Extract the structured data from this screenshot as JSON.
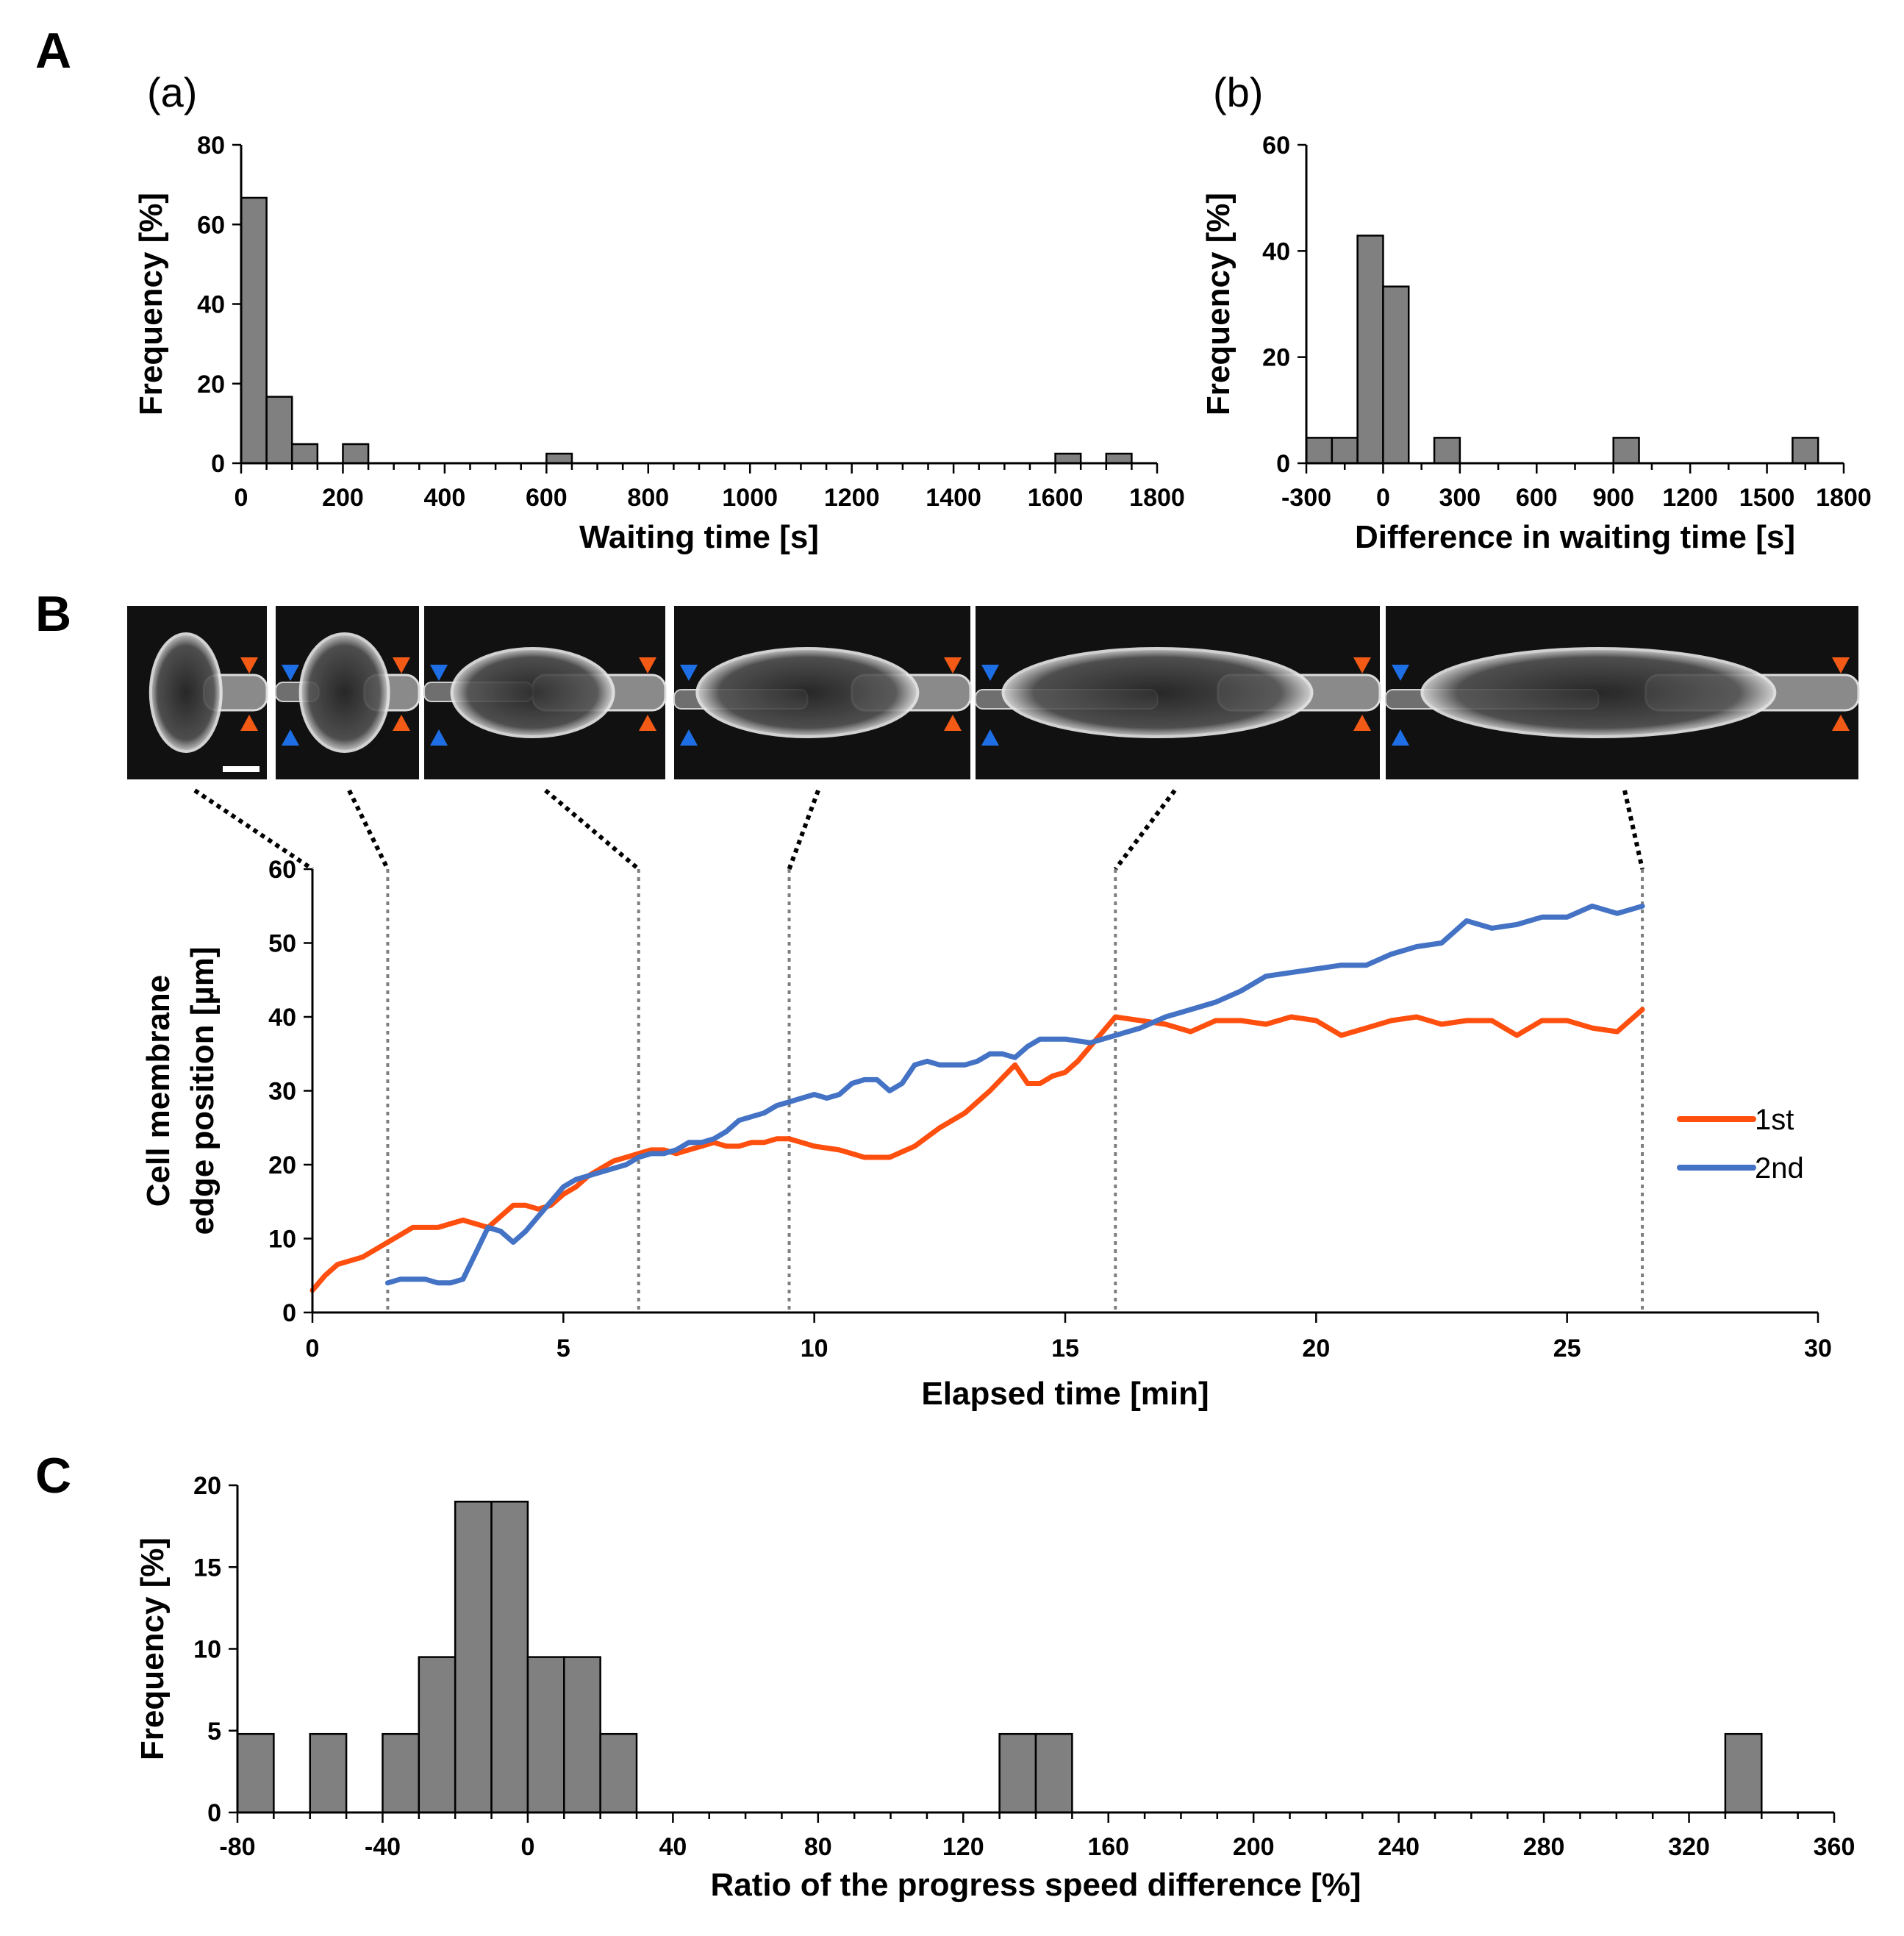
{
  "panels": {
    "A": "A",
    "A_a": "(a)",
    "A_b": "(b)",
    "B": "B",
    "C": "C"
  },
  "micrograph": {
    "frame_count": 6,
    "description_colors": {
      "orange_marker": "#F25A16",
      "blue_marker": "#1E6FE6",
      "cell_bg": "#111111"
    }
  },
  "colors": {
    "bar": "#808080",
    "series_1st": "#FF4F0F",
    "series_2nd": "#4472C4",
    "guide": "#7f7f7f"
  },
  "chart_data": [
    {
      "id": "A_a",
      "type": "bar",
      "title": "(a)",
      "xlabel": "Waiting time [s]",
      "ylabel": "Frequency [%]",
      "xlim": [
        0,
        1800
      ],
      "ylim": [
        0,
        80
      ],
      "xticks": [
        0,
        200,
        400,
        600,
        800,
        1000,
        1200,
        1400,
        1600,
        1800
      ],
      "yticks": [
        0,
        20,
        40,
        60,
        80
      ],
      "bin_width": 50,
      "bin_starts": [
        0,
        50,
        100,
        200,
        600,
        1600,
        1700
      ],
      "values": [
        66.7,
        16.7,
        4.8,
        4.8,
        2.4,
        2.4,
        2.4
      ]
    },
    {
      "id": "A_b",
      "type": "bar",
      "title": "(b)",
      "xlabel": "Difference in waiting time [s]",
      "ylabel": "Frequency [%]",
      "xlim": [
        -300,
        1800
      ],
      "ylim": [
        0,
        60
      ],
      "xticks": [
        -300,
        0,
        300,
        600,
        900,
        1200,
        1500,
        1800
      ],
      "yticks": [
        0,
        20,
        40,
        60
      ],
      "bin_width": 100,
      "bin_starts": [
        -300,
        -200,
        -100,
        0,
        200,
        900,
        1600
      ],
      "values": [
        4.8,
        4.8,
        42.9,
        33.3,
        4.8,
        4.8,
        4.8
      ]
    },
    {
      "id": "B",
      "type": "line",
      "xlabel": "Elapsed time [min]",
      "ylabel_lines": [
        "Cell membrane",
        "edge position [µm]"
      ],
      "xlim": [
        0,
        30
      ],
      "ylim": [
        0,
        60
      ],
      "xticks": [
        0,
        5,
        10,
        15,
        20,
        25,
        30
      ],
      "yticks": [
        0,
        10,
        20,
        30,
        40,
        50,
        60
      ],
      "guide_times": [
        1.5,
        6.5,
        9.5,
        16,
        26.5
      ],
      "legend": [
        "1st",
        "2nd"
      ],
      "legend_position": "right",
      "series": [
        {
          "name": "1st",
          "color": "#FF4F0F",
          "x": [
            0,
            0.25,
            0.5,
            0.75,
            1,
            1.25,
            1.5,
            1.75,
            2,
            2.25,
            2.5,
            2.75,
            3,
            3.25,
            3.5,
            3.75,
            4,
            4.25,
            4.5,
            4.75,
            5,
            5.25,
            5.5,
            5.75,
            6,
            6.25,
            6.5,
            6.75,
            7,
            7.25,
            7.5,
            7.75,
            8,
            8.25,
            8.5,
            8.75,
            9,
            9.25,
            9.5,
            9.75,
            10,
            10.5,
            11,
            11.5,
            12,
            12.5,
            13,
            13.5,
            14,
            14.25,
            14.5,
            14.75,
            15,
            15.25,
            15.5,
            15.75,
            16,
            16.5,
            17,
            17.5,
            18,
            18.5,
            19,
            19.5,
            20,
            20.5,
            21,
            21.5,
            22,
            22.5,
            23,
            23.5,
            24,
            24.5,
            25,
            25.5,
            26,
            26.5
          ],
          "y": [
            3,
            5,
            6.5,
            7,
            7.5,
            8.5,
            9.5,
            10.5,
            11.5,
            11.5,
            11.5,
            12,
            12.5,
            12,
            11.5,
            13,
            14.5,
            14.5,
            14,
            14.5,
            16,
            17,
            18.5,
            19.5,
            20.5,
            21,
            21.5,
            22,
            22,
            21.5,
            22,
            22.5,
            23,
            22.5,
            22.5,
            23,
            23,
            23.5,
            23.5,
            23,
            22.5,
            22,
            21,
            21,
            22.5,
            25,
            27,
            30,
            33.5,
            31,
            31,
            32,
            32.5,
            34,
            36,
            38,
            40,
            39.5,
            39,
            38,
            39.5,
            39.5,
            39,
            40,
            39.5,
            37.5,
            38.5,
            39.5,
            40,
            39,
            39.5,
            39.5,
            37.5,
            39.5,
            39.5,
            38.5,
            38,
            41
          ]
        },
        {
          "name": "2nd",
          "color": "#4472C4",
          "x": [
            1.5,
            1.75,
            2,
            2.25,
            2.5,
            2.75,
            3,
            3.25,
            3.5,
            3.75,
            4,
            4.25,
            4.5,
            4.75,
            5,
            5.25,
            5.5,
            5.75,
            6,
            6.25,
            6.5,
            6.75,
            7,
            7.25,
            7.5,
            7.75,
            8,
            8.25,
            8.5,
            8.75,
            9,
            9.25,
            9.5,
            9.75,
            10,
            10.25,
            10.5,
            10.75,
            11,
            11.25,
            11.5,
            11.75,
            12,
            12.25,
            12.5,
            12.75,
            13,
            13.25,
            13.5,
            13.75,
            14,
            14.25,
            14.5,
            14.75,
            15,
            15.5,
            16,
            16.5,
            17,
            17.5,
            18,
            18.5,
            19,
            19.5,
            20,
            20.5,
            21,
            21.5,
            22,
            22.5,
            23,
            23.5,
            24,
            24.5,
            25,
            25.5,
            26,
            26.5
          ],
          "y": [
            4,
            4.5,
            4.5,
            4.5,
            4,
            4,
            4.5,
            8,
            11.5,
            11,
            9.5,
            11,
            13,
            15,
            17,
            18,
            18.5,
            19,
            19.5,
            20,
            21,
            21.5,
            21.5,
            22,
            23,
            23,
            23.5,
            24.5,
            26,
            26.5,
            27,
            28,
            28.5,
            29,
            29.5,
            29,
            29.5,
            31,
            31.5,
            31.5,
            30,
            31,
            33.5,
            34,
            33.5,
            33.5,
            33.5,
            34,
            35,
            35,
            34.5,
            36,
            37,
            37,
            37,
            36.5,
            37.5,
            38.5,
            40,
            41,
            42,
            43.5,
            45.5,
            46,
            46.5,
            47,
            47,
            48.5,
            49.5,
            50,
            53,
            52,
            52.5,
            53.5,
            53.5,
            55,
            54,
            55
          ]
        }
      ]
    },
    {
      "id": "C",
      "type": "bar",
      "xlabel": "Ratio of the progress speed difference [%]",
      "ylabel": "Frequency [%]",
      "xlim": [
        -80,
        360
      ],
      "ylim": [
        0,
        20
      ],
      "xticks": [
        -80,
        -40,
        0,
        40,
        80,
        120,
        160,
        200,
        240,
        280,
        320,
        360
      ],
      "yticks": [
        0,
        5,
        10,
        15,
        20
      ],
      "bin_width": 10,
      "bin_starts": [
        -80,
        -60,
        -40,
        -30,
        -20,
        -10,
        0,
        10,
        20,
        130,
        140,
        330
      ],
      "values": [
        4.8,
        4.8,
        4.8,
        9.5,
        19.0,
        19.0,
        9.5,
        9.5,
        4.8,
        4.8,
        4.8,
        4.8
      ]
    }
  ]
}
